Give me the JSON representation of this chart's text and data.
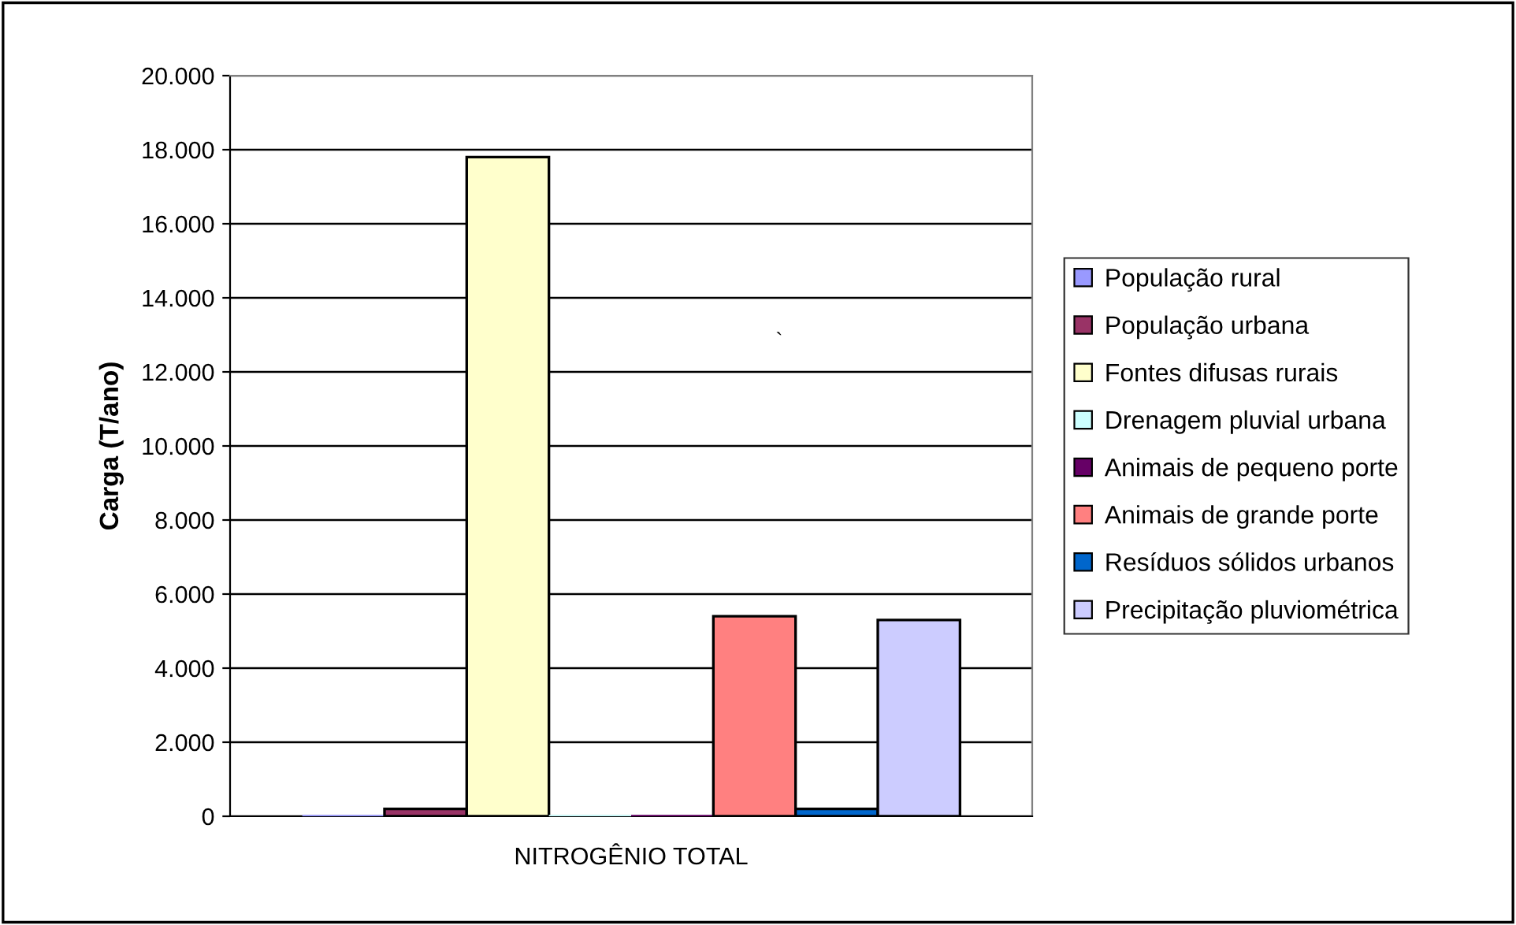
{
  "chart_data": {
    "type": "bar",
    "ylabel": "Carga (T/ano)",
    "categories": [
      "NITROGÊNIO TOTAL"
    ],
    "series": [
      {
        "name": "População rural",
        "color": "#9999ff",
        "values": [
          0
        ]
      },
      {
        "name": "População urbana",
        "color": "#993366",
        "values": [
          200
        ]
      },
      {
        "name": "Fontes difusas rurais",
        "color": "#ffffcc",
        "values": [
          17800
        ]
      },
      {
        "name": "Drenagem pluvial urbana",
        "color": "#ccffff",
        "values": [
          0
        ]
      },
      {
        "name": "Animais de pequeno porte",
        "color": "#660066",
        "values": [
          0
        ]
      },
      {
        "name": "Animais de grande porte",
        "color": "#ff8080",
        "values": [
          5400
        ]
      },
      {
        "name": "Resíduos sólidos urbanos",
        "color": "#0066cc",
        "values": [
          200
        ]
      },
      {
        "name": "Precipitação pluviométrica",
        "color": "#ccccff",
        "values": [
          5300
        ]
      }
    ],
    "ylim": [
      0,
      20000
    ],
    "yticks": [
      {
        "value": 0,
        "label": "0"
      },
      {
        "value": 2000,
        "label": "2.000"
      },
      {
        "value": 4000,
        "label": "4.000"
      },
      {
        "value": 6000,
        "label": "6.000"
      },
      {
        "value": 8000,
        "label": "8.000"
      },
      {
        "value": 10000,
        "label": "10.000"
      },
      {
        "value": 12000,
        "label": "12.000"
      },
      {
        "value": 14000,
        "label": "14.000"
      },
      {
        "value": 16000,
        "label": "16.000"
      },
      {
        "value": 18000,
        "label": "18.000"
      },
      {
        "value": 20000,
        "label": "20.000"
      }
    ],
    "grid": "y",
    "legend": "right",
    "annotations": [
      "`"
    ]
  }
}
